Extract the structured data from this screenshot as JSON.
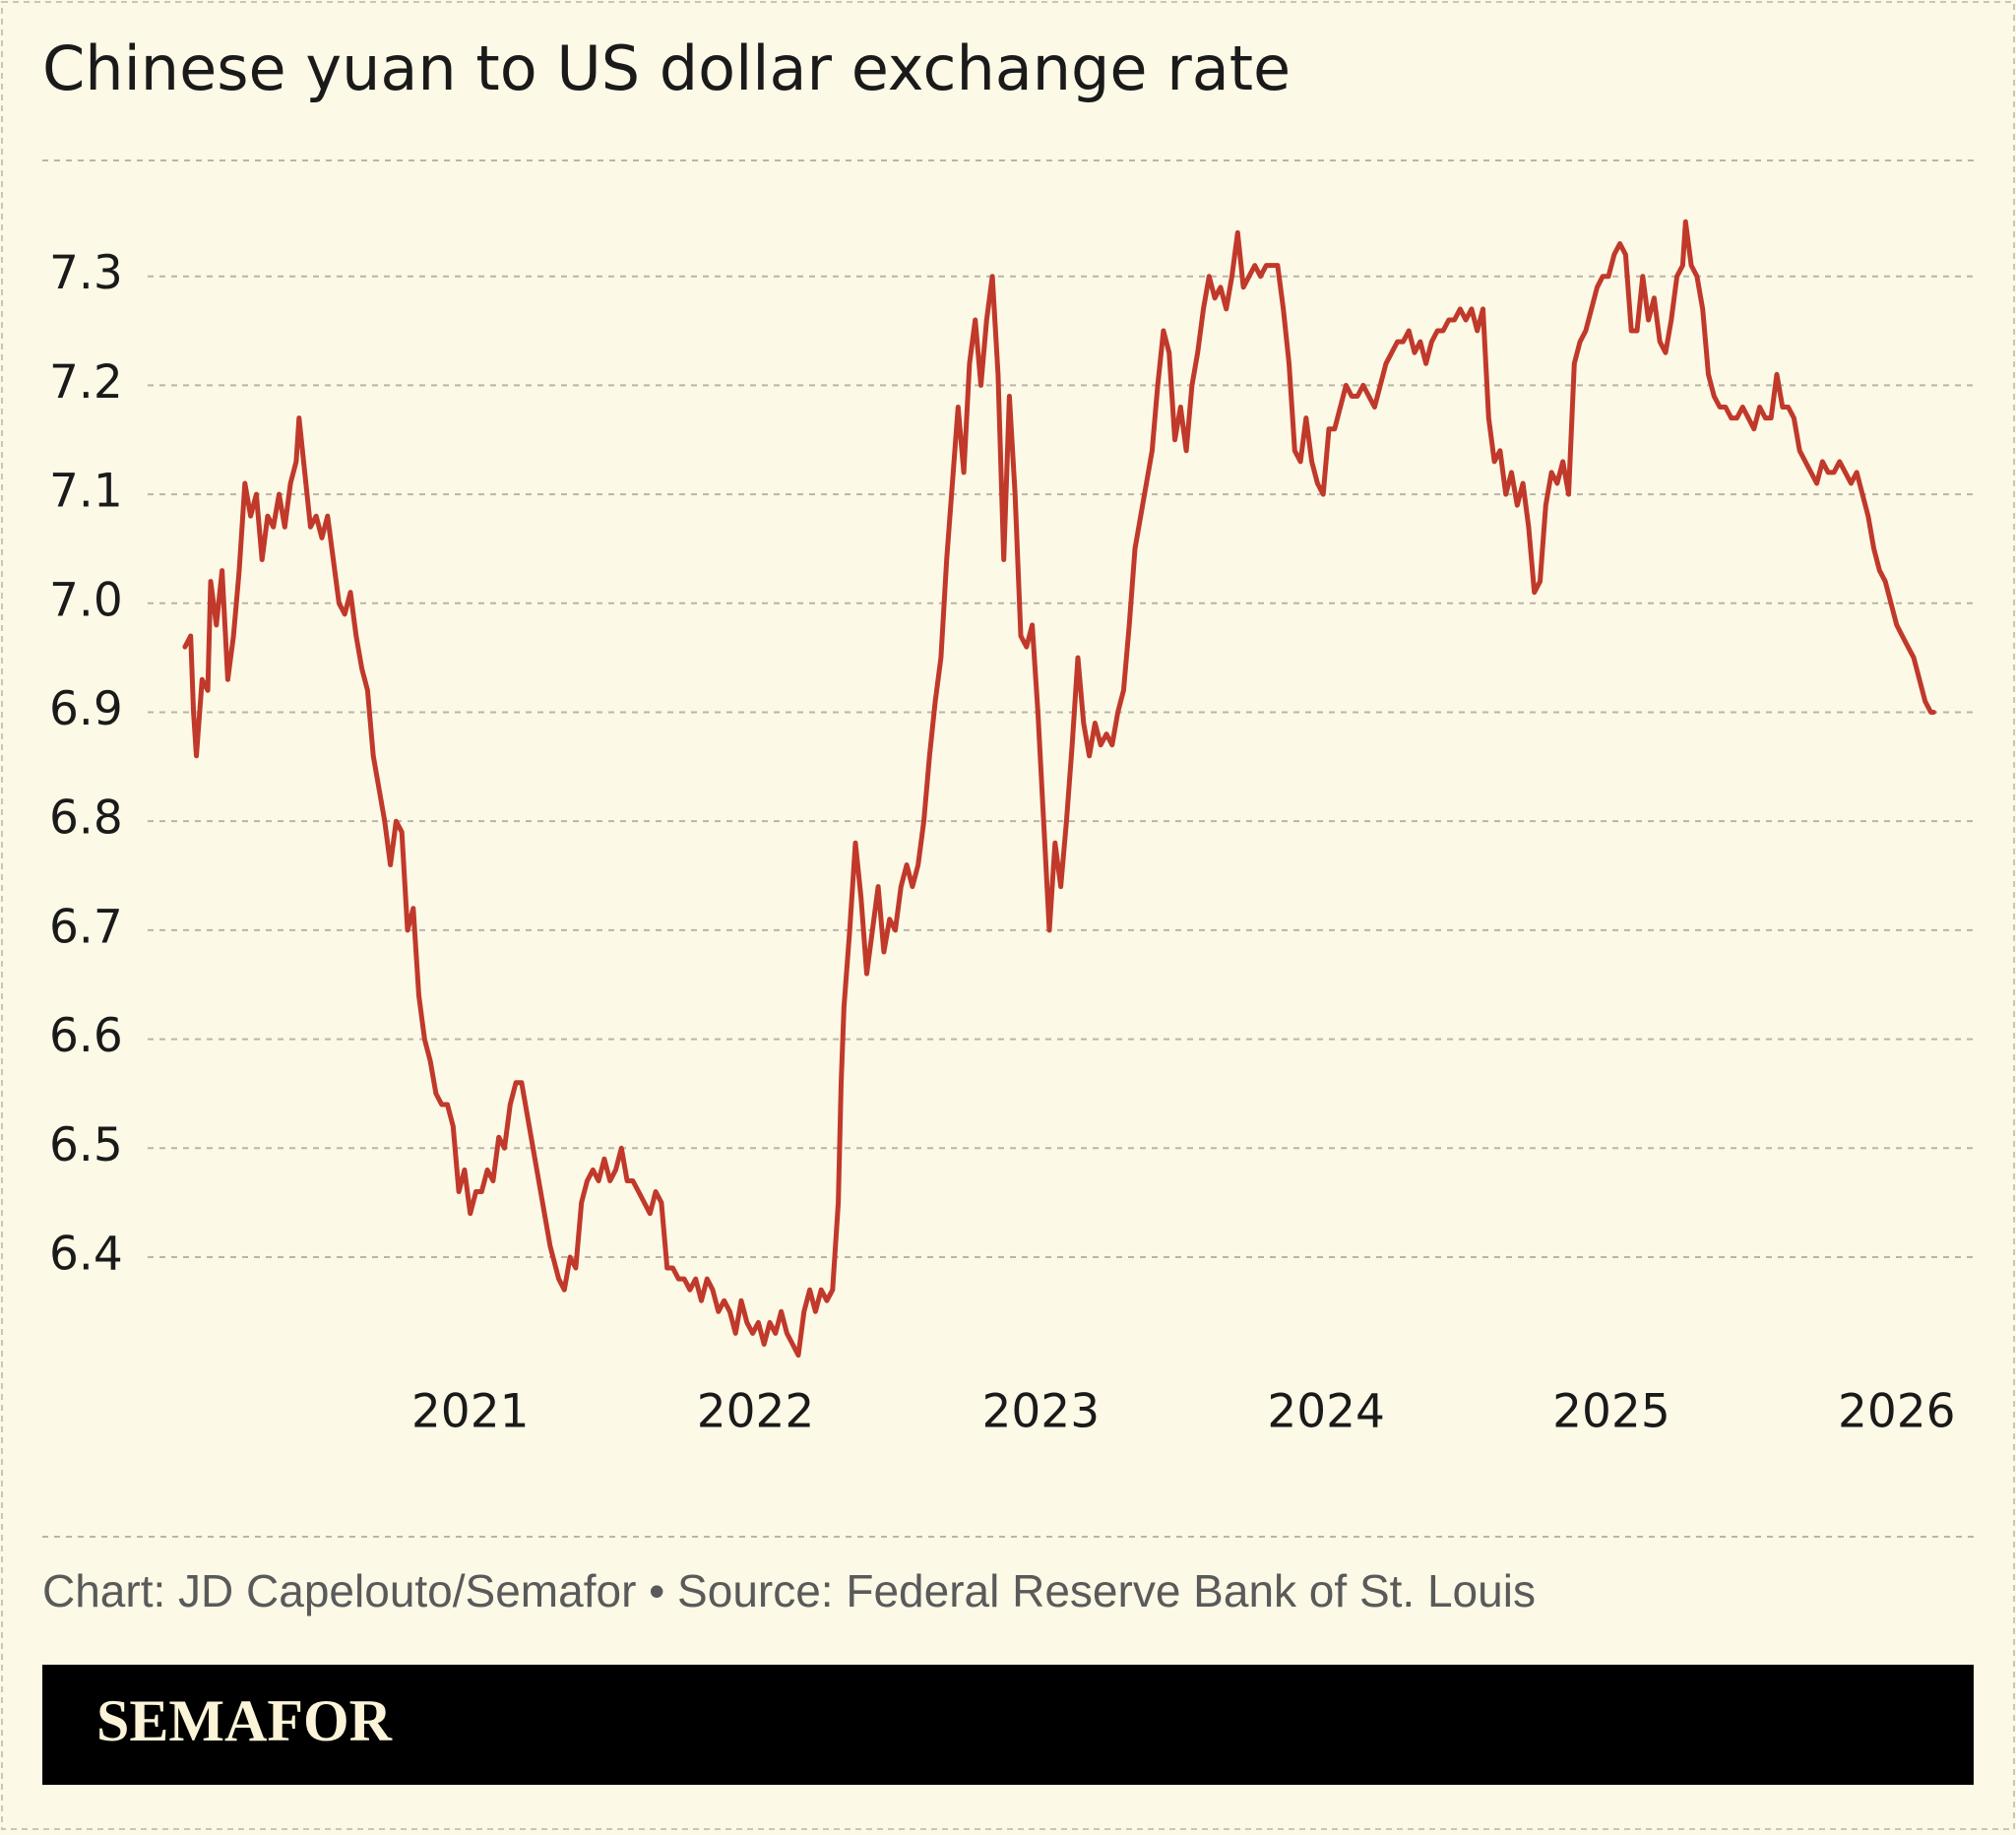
{
  "chart_data": {
    "type": "line",
    "title": "Chinese yuan to US dollar exchange rate",
    "x": [
      2020.0,
      2020.02,
      2020.03,
      2020.04,
      2020.06,
      2020.08,
      2020.09,
      2020.11,
      2020.13,
      2020.15,
      2020.17,
      2020.19,
      2020.21,
      2020.23,
      2020.25,
      2020.27,
      2020.29,
      2020.31,
      2020.33,
      2020.35,
      2020.37,
      2020.39,
      2020.4,
      2020.42,
      2020.44,
      2020.46,
      2020.48,
      2020.5,
      2020.52,
      2020.54,
      2020.56,
      2020.58,
      2020.6,
      2020.62,
      2020.64,
      2020.66,
      2020.68,
      2020.7,
      2020.72,
      2020.74,
      2020.76,
      2020.78,
      2020.8,
      2020.82,
      2020.84,
      2020.86,
      2020.88,
      2020.9,
      2020.92,
      2020.94,
      2020.96,
      2020.98,
      2021.0,
      2021.02,
      2021.04,
      2021.06,
      2021.08,
      2021.1,
      2021.12,
      2021.14,
      2021.16,
      2021.18,
      2021.2,
      2021.22,
      2021.24,
      2021.26,
      2021.28,
      2021.31,
      2021.33,
      2021.35,
      2021.37,
      2021.39,
      2021.41,
      2021.43,
      2021.45,
      2021.47,
      2021.49,
      2021.51,
      2021.53,
      2021.55,
      2021.57,
      2021.59,
      2021.61,
      2021.63,
      2021.65,
      2021.67,
      2021.69,
      2021.71,
      2021.73,
      2021.75,
      2021.77,
      2021.79,
      2021.81,
      2021.83,
      2021.85,
      2021.87,
      2021.89,
      2021.91,
      2021.93,
      2021.95,
      2021.97,
      2021.99,
      2022.01,
      2022.03,
      2022.05,
      2022.07,
      2022.09,
      2022.11,
      2022.13,
      2022.15,
      2022.17,
      2022.19,
      2022.21,
      2022.23,
      2022.25,
      2022.27,
      2022.29,
      2022.3,
      2022.31,
      2022.33,
      2022.35,
      2022.37,
      2022.39,
      2022.41,
      2022.43,
      2022.45,
      2022.47,
      2022.49,
      2022.51,
      2022.53,
      2022.55,
      2022.57,
      2022.59,
      2022.61,
      2022.63,
      2022.65,
      2022.67,
      2022.69,
      2022.71,
      2022.73,
      2022.75,
      2022.77,
      2022.79,
      2022.81,
      2022.83,
      2022.85,
      2022.87,
      2022.89,
      2022.91,
      2022.93,
      2022.95,
      2022.97,
      2022.99,
      2023.01,
      2023.03,
      2023.05,
      2023.07,
      2023.09,
      2023.11,
      2023.13,
      2023.15,
      2023.17,
      2023.19,
      2023.21,
      2023.23,
      2023.25,
      2023.27,
      2023.29,
      2023.31,
      2023.33,
      2023.35,
      2023.37,
      2023.39,
      2023.41,
      2023.43,
      2023.45,
      2023.47,
      2023.49,
      2023.51,
      2023.53,
      2023.55,
      2023.57,
      2023.59,
      2023.61,
      2023.63,
      2023.65,
      2023.67,
      2023.69,
      2023.71,
      2023.73,
      2023.75,
      2023.77,
      2023.79,
      2023.81,
      2023.83,
      2023.85,
      2023.87,
      2023.89,
      2023.91,
      2023.93,
      2023.95,
      2023.97,
      2023.99,
      2024.01,
      2024.03,
      2024.05,
      2024.07,
      2024.09,
      2024.11,
      2024.13,
      2024.15,
      2024.17,
      2024.19,
      2024.21,
      2024.23,
      2024.25,
      2024.27,
      2024.29,
      2024.31,
      2024.33,
      2024.35,
      2024.37,
      2024.39,
      2024.41,
      2024.43,
      2024.45,
      2024.47,
      2024.49,
      2024.51,
      2024.53,
      2024.55,
      2024.57,
      2024.59,
      2024.61,
      2024.63,
      2024.65,
      2024.67,
      2024.69,
      2024.71,
      2024.73,
      2024.75,
      2024.77,
      2024.79,
      2024.81,
      2024.83,
      2024.85,
      2024.87,
      2024.89,
      2024.91,
      2024.93,
      2024.95,
      2024.97,
      2024.99,
      2025.01,
      2025.03,
      2025.05,
      2025.07,
      2025.09,
      2025.11,
      2025.13,
      2025.15,
      2025.17,
      2025.19,
      2025.21,
      2025.23,
      2025.25,
      2025.26,
      2025.28,
      2025.3,
      2025.32,
      2025.34,
      2025.36,
      2025.38,
      2025.4,
      2025.42,
      2025.44,
      2025.46,
      2025.48,
      2025.5,
      2025.52,
      2025.54,
      2025.56,
      2025.58,
      2025.6,
      2025.62,
      2025.64,
      2025.66,
      2025.68,
      2025.7,
      2025.72,
      2025.74,
      2025.76,
      2025.78,
      2025.8,
      2025.82,
      2025.84,
      2025.86,
      2025.88,
      2025.9,
      2025.92,
      2025.94,
      2025.96,
      2025.98,
      2026.0,
      2026.02,
      2026.04,
      2026.06,
      2026.08,
      2026.1,
      2026.12,
      2026.13
    ],
    "values": [
      6.96,
      6.97,
      6.9,
      6.86,
      6.93,
      6.92,
      7.02,
      6.98,
      7.03,
      6.93,
      6.97,
      7.03,
      7.11,
      7.08,
      7.1,
      7.04,
      7.08,
      7.07,
      7.1,
      7.07,
      7.11,
      7.13,
      7.17,
      7.12,
      7.07,
      7.08,
      7.06,
      7.08,
      7.04,
      7.0,
      6.99,
      7.01,
      6.97,
      6.94,
      6.92,
      6.86,
      6.83,
      6.8,
      6.76,
      6.8,
      6.79,
      6.7,
      6.72,
      6.64,
      6.6,
      6.58,
      6.55,
      6.54,
      6.54,
      6.52,
      6.46,
      6.48,
      6.44,
      6.46,
      6.46,
      6.48,
      6.47,
      6.51,
      6.5,
      6.54,
      6.56,
      6.56,
      6.53,
      6.5,
      6.47,
      6.44,
      6.41,
      6.38,
      6.37,
      6.4,
      6.39,
      6.45,
      6.47,
      6.48,
      6.47,
      6.49,
      6.47,
      6.48,
      6.5,
      6.47,
      6.47,
      6.46,
      6.45,
      6.44,
      6.46,
      6.45,
      6.39,
      6.39,
      6.38,
      6.38,
      6.37,
      6.38,
      6.36,
      6.38,
      6.37,
      6.35,
      6.36,
      6.35,
      6.33,
      6.36,
      6.34,
      6.33,
      6.34,
      6.32,
      6.34,
      6.33,
      6.35,
      6.33,
      6.32,
      6.31,
      6.35,
      6.37,
      6.35,
      6.37,
      6.36,
      6.37,
      6.45,
      6.56,
      6.63,
      6.7,
      6.78,
      6.73,
      6.66,
      6.7,
      6.74,
      6.68,
      6.71,
      6.7,
      6.74,
      6.76,
      6.74,
      6.76,
      6.8,
      6.86,
      6.91,
      6.95,
      7.04,
      7.11,
      7.18,
      7.12,
      7.22,
      7.26,
      7.2,
      7.26,
      7.3,
      7.21,
      7.04,
      7.19,
      7.1,
      6.97,
      6.96,
      6.98,
      6.9,
      6.8,
      6.7,
      6.78,
      6.74,
      6.8,
      6.87,
      6.95,
      6.89,
      6.86,
      6.89,
      6.87,
      6.88,
      6.87,
      6.9,
      6.92,
      6.98,
      7.05,
      7.08,
      7.11,
      7.14,
      7.2,
      7.25,
      7.23,
      7.15,
      7.18,
      7.14,
      7.2,
      7.23,
      7.27,
      7.3,
      7.28,
      7.29,
      7.27,
      7.3,
      7.34,
      7.29,
      7.3,
      7.31,
      7.3,
      7.31,
      7.31,
      7.31,
      7.27,
      7.22,
      7.14,
      7.13,
      7.17,
      7.13,
      7.11,
      7.1,
      7.16,
      7.16,
      7.18,
      7.2,
      7.19,
      7.19,
      7.2,
      7.19,
      7.18,
      7.2,
      7.22,
      7.23,
      7.24,
      7.24,
      7.25,
      7.23,
      7.24,
      7.22,
      7.24,
      7.25,
      7.25,
      7.26,
      7.26,
      7.27,
      7.26,
      7.27,
      7.25,
      7.27,
      7.17,
      7.13,
      7.14,
      7.1,
      7.12,
      7.09,
      7.11,
      7.07,
      7.01,
      7.02,
      7.09,
      7.12,
      7.11,
      7.13,
      7.1,
      7.22,
      7.24,
      7.25,
      7.27,
      7.29,
      7.3,
      7.3,
      7.32,
      7.33,
      7.32,
      7.25,
      7.25,
      7.3,
      7.26,
      7.28,
      7.24,
      7.23,
      7.26,
      7.3,
      7.31,
      7.35,
      7.31,
      7.3,
      7.27,
      7.21,
      7.19,
      7.18,
      7.18,
      7.17,
      7.17,
      7.18,
      7.17,
      7.16,
      7.18,
      7.17,
      7.17,
      7.21,
      7.18,
      7.18,
      7.17,
      7.14,
      7.13,
      7.12,
      7.11,
      7.13,
      7.12,
      7.12,
      7.13,
      7.12,
      7.11,
      7.12,
      7.1,
      7.08,
      7.05,
      7.03,
      7.02,
      7.0,
      6.98,
      6.97,
      6.96,
      6.95,
      6.93,
      6.91,
      6.9,
      6.9
    ],
    "color": "#c0392b",
    "xlim": [
      2019.5,
      2026.27
    ],
    "xticks": [
      2021,
      2022,
      2023,
      2024,
      2025,
      2026
    ],
    "ylim": [
      6.25,
      7.4
    ],
    "yticks": [
      6.4,
      6.5,
      6.6,
      6.7,
      6.8,
      6.9,
      {
        "value": 7,
        "label": "7.0"
      },
      7.1,
      7.2,
      7.3
    ],
    "grid": true
  },
  "footer": {
    "credit": "Chart: JD Capelouto/Semafor • Source: Federal Reserve Bank of St. Louis",
    "brand": "SEMAFOR"
  }
}
